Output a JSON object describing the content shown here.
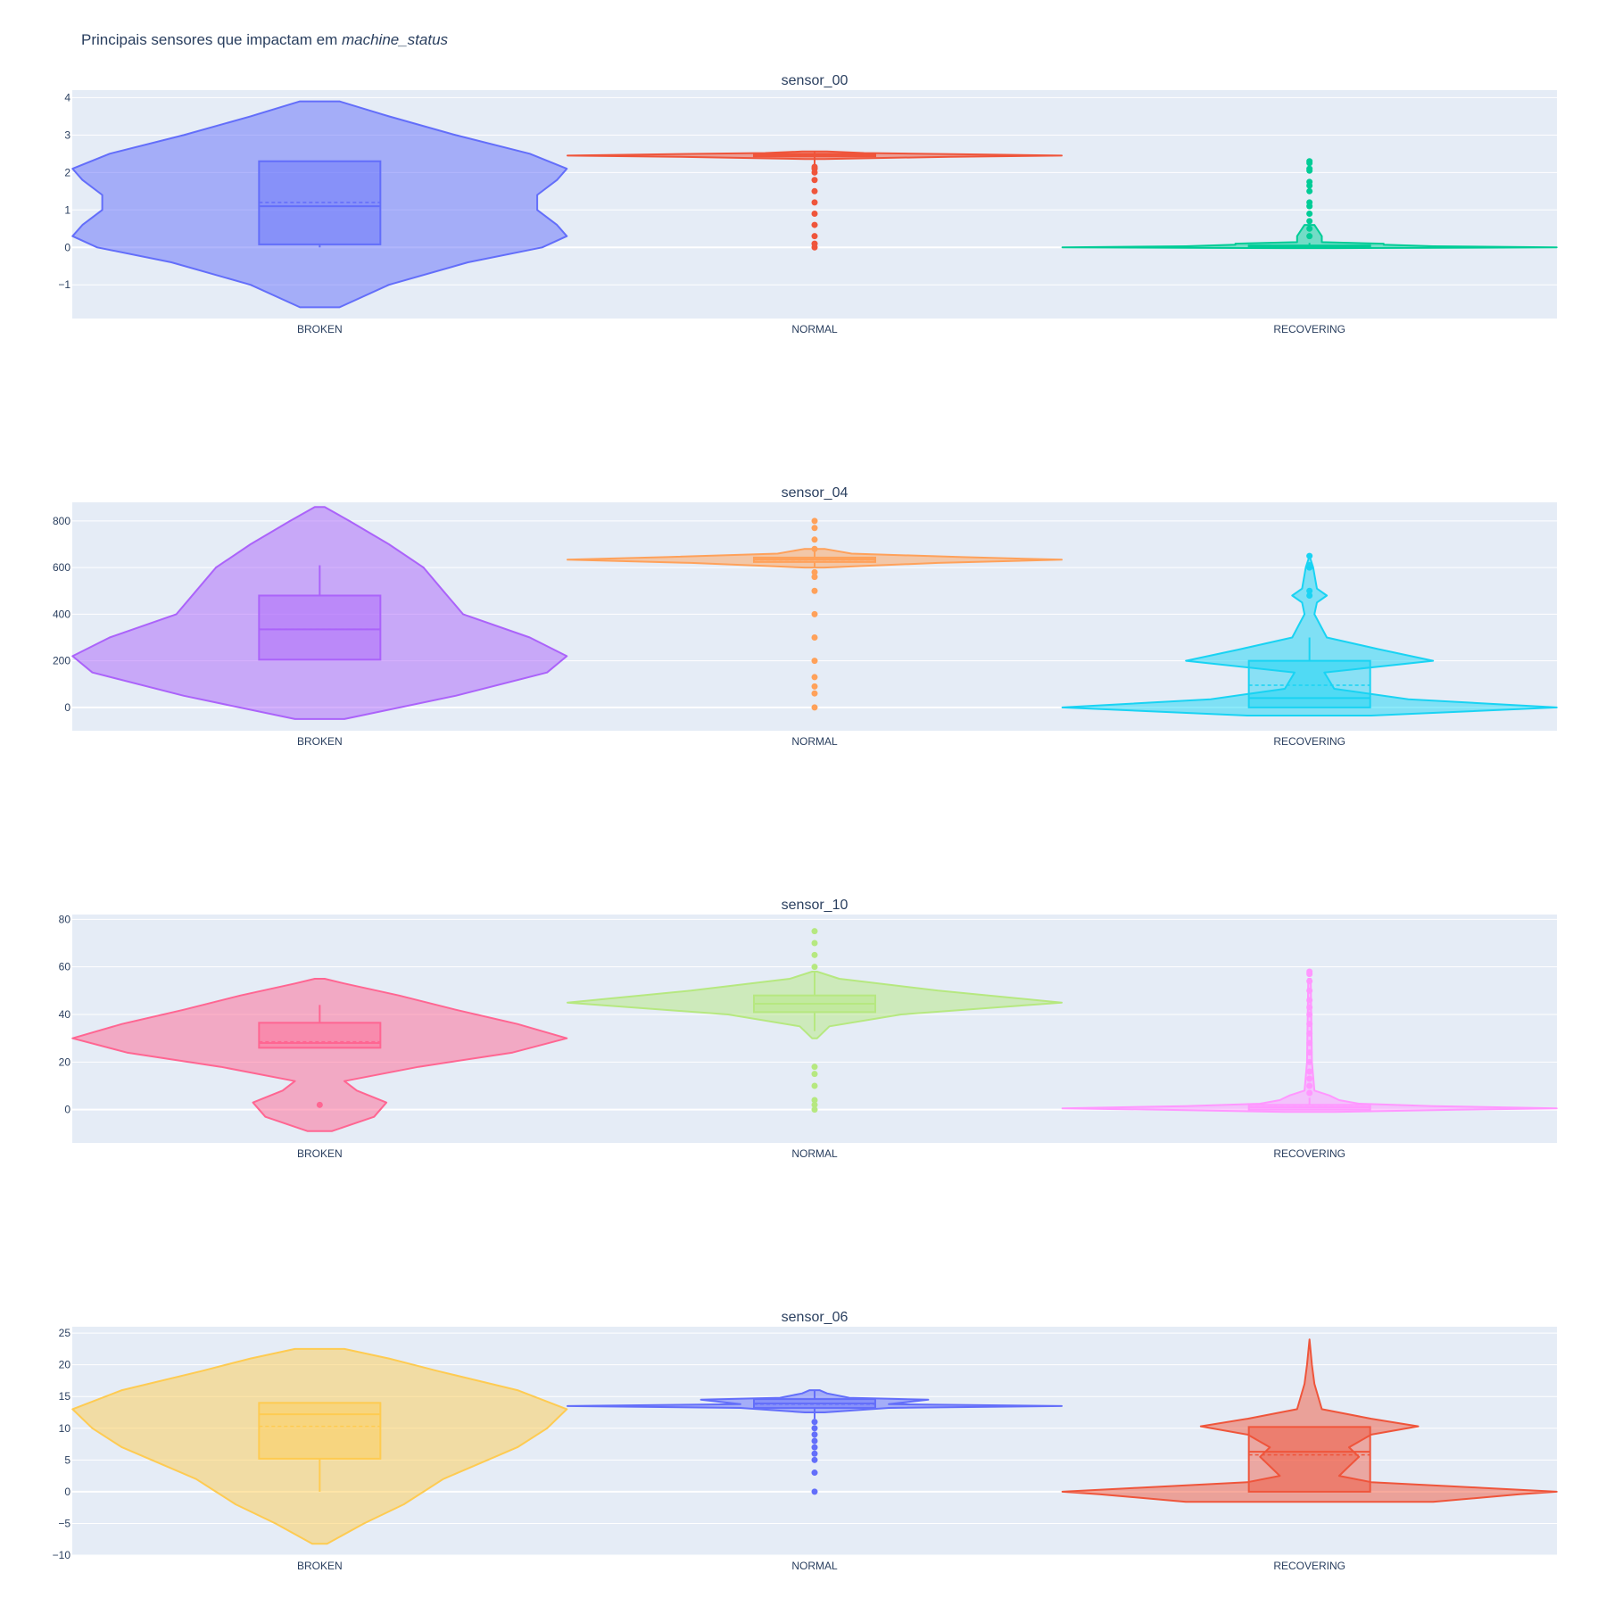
{
  "title": {
    "text": "Principais sensores que impactam em ",
    "emphasis": "machine_status"
  },
  "colors": {
    "plot_bg": "#E5ECF6",
    "grid": "#ffffff",
    "text": "#2a3f5f"
  },
  "chart_data": [
    {
      "type": "violin",
      "title": "sensor_00",
      "categories": [
        "BROKEN",
        "NORMAL",
        "RECOVERING"
      ],
      "ylim": [
        -1.9,
        4.2
      ],
      "yticks": [
        -1,
        0,
        1,
        2,
        3,
        4
      ],
      "ytick_labels": [
        "−1",
        "0",
        "1",
        "2",
        "3",
        "4"
      ],
      "violins": [
        {
          "category": "BROKEN",
          "color": "#636EFA",
          "profile": [
            [
              -1.6,
              0.08
            ],
            [
              -1.0,
              0.28
            ],
            [
              -0.4,
              0.6
            ],
            [
              0.0,
              0.9
            ],
            [
              0.3,
              1.0
            ],
            [
              0.6,
              0.96
            ],
            [
              1.0,
              0.88
            ],
            [
              1.4,
              0.88
            ],
            [
              1.8,
              0.96
            ],
            [
              2.1,
              1.0
            ],
            [
              2.5,
              0.85
            ],
            [
              3.0,
              0.55
            ],
            [
              3.5,
              0.28
            ],
            [
              3.9,
              0.08
            ]
          ],
          "box": {
            "q1": 0.08,
            "median": 1.1,
            "q3": 2.3,
            "mean": 1.2,
            "whisker_low": 0.0,
            "whisker_high": 2.3
          },
          "outliers": []
        },
        {
          "category": "NORMAL",
          "color": "#EF553B",
          "profile": [
            [
              2.36,
              0.04
            ],
            [
              2.42,
              0.55
            ],
            [
              2.45,
              1.0
            ],
            [
              2.48,
              0.7
            ],
            [
              2.52,
              0.2
            ],
            [
              2.56,
              0.05
            ]
          ],
          "box": {
            "q1": 2.43,
            "median": 2.46,
            "q3": 2.5,
            "mean": 2.45,
            "whisker_low": 2.2,
            "whisker_high": 2.56
          },
          "outliers": [
            0.0,
            0.1,
            0.3,
            0.6,
            0.9,
            1.2,
            1.5,
            1.8,
            2.0,
            2.1,
            2.15
          ]
        },
        {
          "category": "RECOVERING",
          "color": "#00CC96",
          "profile": [
            [
              -0.02,
              0.1
            ],
            [
              0.0,
              1.0
            ],
            [
              0.03,
              0.5
            ],
            [
              0.07,
              0.3
            ],
            [
              0.1,
              0.3
            ],
            [
              0.14,
              0.05
            ],
            [
              0.3,
              0.05
            ],
            [
              0.6,
              0.02
            ]
          ],
          "box": {
            "q1": 0.0,
            "median": 0.0,
            "q3": 0.05,
            "mean": 0.02,
            "whisker_low": 0.0,
            "whisker_high": 0.12
          },
          "outliers": [
            0.3,
            0.5,
            0.7,
            0.9,
            1.1,
            1.2,
            1.5,
            1.65,
            1.75,
            2.05,
            2.1,
            2.25,
            2.3
          ]
        }
      ]
    },
    {
      "type": "violin",
      "title": "sensor_04",
      "categories": [
        "BROKEN",
        "NORMAL",
        "RECOVERING"
      ],
      "ylim": [
        -100,
        880
      ],
      "yticks": [
        0,
        200,
        400,
        600,
        800
      ],
      "ytick_labels": [
        "0",
        "200",
        "400",
        "600",
        "800"
      ],
      "violins": [
        {
          "category": "BROKEN",
          "color": "#AB63FA",
          "profile": [
            [
              -50,
              0.1
            ],
            [
              50,
              0.55
            ],
            [
              150,
              0.92
            ],
            [
              220,
              1.0
            ],
            [
              300,
              0.85
            ],
            [
              400,
              0.58
            ],
            [
              500,
              0.5
            ],
            [
              600,
              0.42
            ],
            [
              700,
              0.28
            ],
            [
              800,
              0.12
            ],
            [
              860,
              0.02
            ]
          ],
          "box": {
            "q1": 205,
            "median": 335,
            "q3": 480,
            "mean": 335,
            "whisker_low": 205,
            "whisker_high": 610
          },
          "outliers": []
        },
        {
          "category": "NORMAL",
          "color": "#FFA15A",
          "profile": [
            [
              600,
              0.04
            ],
            [
              620,
              0.5
            ],
            [
              634,
              1.0
            ],
            [
              645,
              0.6
            ],
            [
              660,
              0.15
            ],
            [
              680,
              0.04
            ]
          ],
          "box": {
            "q1": 624,
            "median": 635,
            "q3": 643,
            "mean": 633,
            "whisker_low": 600,
            "whisker_high": 670
          },
          "outliers": [
            0,
            60,
            90,
            130,
            200,
            300,
            400,
            500,
            560,
            580,
            680,
            720,
            770,
            800
          ]
        },
        {
          "category": "RECOVERING",
          "color": "#19D3F3",
          "profile": [
            [
              -35,
              0.25
            ],
            [
              0,
              1.0
            ],
            [
              35,
              0.4
            ],
            [
              80,
              0.1
            ],
            [
              150,
              0.06
            ],
            [
              200,
              0.5
            ],
            [
              250,
              0.28
            ],
            [
              300,
              0.07
            ],
            [
              400,
              0.02
            ],
            [
              450,
              0.03
            ],
            [
              480,
              0.07
            ],
            [
              510,
              0.03
            ],
            [
              600,
              0.015
            ],
            [
              650,
              0.0
            ]
          ],
          "box": {
            "q1": 0,
            "median": 40,
            "q3": 200,
            "mean": 95,
            "whisker_low": 0,
            "whisker_high": 300
          },
          "outliers": [
            480,
            500,
            600,
            610,
            650
          ]
        }
      ]
    },
    {
      "type": "violin",
      "title": "sensor_10",
      "categories": [
        "BROKEN",
        "NORMAL",
        "RECOVERING"
      ],
      "ylim": [
        -14,
        82
      ],
      "yticks": [
        0,
        20,
        40,
        60,
        80
      ],
      "ytick_labels": [
        "0",
        "20",
        "40",
        "60",
        "80"
      ],
      "violins": [
        {
          "category": "BROKEN",
          "color": "#FF6692",
          "profile": [
            [
              -9,
              0.05
            ],
            [
              -3,
              0.22
            ],
            [
              3,
              0.27
            ],
            [
              8,
              0.15
            ],
            [
              12,
              0.1
            ],
            [
              18,
              0.4
            ],
            [
              24,
              0.78
            ],
            [
              30,
              1.0
            ],
            [
              36,
              0.8
            ],
            [
              42,
              0.55
            ],
            [
              48,
              0.32
            ],
            [
              53,
              0.1
            ],
            [
              55,
              0.02
            ]
          ],
          "box": {
            "q1": 26,
            "median": 28,
            "q3": 36.5,
            "mean": 28.5,
            "whisker_low": 26,
            "whisker_high": 44
          },
          "outliers": [
            2
          ]
        },
        {
          "category": "NORMAL",
          "color": "#B6E880",
          "profile": [
            [
              30,
              0.01
            ],
            [
              35,
              0.06
            ],
            [
              40,
              0.35
            ],
            [
              45,
              1.0
            ],
            [
              50,
              0.5
            ],
            [
              55,
              0.1
            ],
            [
              58,
              0.01
            ]
          ],
          "box": {
            "q1": 41,
            "median": 44.5,
            "q3": 48,
            "mean": 44.5,
            "whisker_low": 33,
            "whisker_high": 58
          },
          "outliers": [
            0,
            2,
            4,
            10,
            15,
            18,
            60,
            65,
            70,
            75
          ]
        },
        {
          "category": "RECOVERING",
          "color": "#FF97FF",
          "profile": [
            [
              -1,
              0.1
            ],
            [
              0,
              0.6
            ],
            [
              0.5,
              1.0
            ],
            [
              1.5,
              0.5
            ],
            [
              2.5,
              0.2
            ],
            [
              4,
              0.12
            ],
            [
              6,
              0.08
            ],
            [
              8,
              0.02
            ],
            [
              20,
              0.01
            ],
            [
              55,
              0.005
            ]
          ],
          "box": {
            "q1": 0,
            "median": 1,
            "q3": 2,
            "mean": 1.2,
            "whisker_low": 0,
            "whisker_high": 5
          },
          "outliers": [
            7,
            10,
            13,
            16,
            20,
            24,
            28,
            32,
            36,
            40,
            43,
            46,
            50,
            54,
            57,
            58
          ]
        }
      ]
    },
    {
      "type": "violin",
      "title": "sensor_06",
      "categories": [
        "BROKEN",
        "NORMAL",
        "RECOVERING"
      ],
      "ylim": [
        -10,
        26
      ],
      "yticks": [
        -10,
        -5,
        0,
        5,
        10,
        15,
        20,
        25
      ],
      "ytick_labels": [
        "−10",
        "−5",
        "0",
        "5",
        "10",
        "15",
        "20",
        "25"
      ],
      "violins": [
        {
          "category": "BROKEN",
          "color": "#FECB52",
          "profile": [
            [
              -8.2,
              0.03
            ],
            [
              -5,
              0.18
            ],
            [
              -2,
              0.34
            ],
            [
              0,
              0.42
            ],
            [
              2,
              0.5
            ],
            [
              4,
              0.62
            ],
            [
              7,
              0.8
            ],
            [
              10,
              0.92
            ],
            [
              13,
              1.0
            ],
            [
              16,
              0.8
            ],
            [
              19,
              0.48
            ],
            [
              21,
              0.28
            ],
            [
              22.5,
              0.1
            ]
          ],
          "box": {
            "q1": 5.2,
            "median": 12.2,
            "q3": 14,
            "mean": 10.3,
            "whisker_low": 0,
            "whisker_high": 14
          },
          "outliers": []
        },
        {
          "category": "NORMAL",
          "color": "#636EFA",
          "profile": [
            [
              12.5,
              0.04
            ],
            [
              13.2,
              0.3
            ],
            [
              13.5,
              1.0
            ],
            [
              13.8,
              0.3
            ],
            [
              14.5,
              0.46
            ],
            [
              14.8,
              0.14
            ],
            [
              15.5,
              0.05
            ],
            [
              16,
              0.02
            ]
          ],
          "box": {
            "q1": 13.2,
            "median": 13.9,
            "q3": 14.6,
            "mean": 13.8,
            "whisker_low": 11.5,
            "whisker_high": 16
          },
          "outliers": [
            0,
            3,
            5,
            6,
            7,
            8,
            9,
            10,
            11
          ]
        },
        {
          "category": "RECOVERING",
          "color": "#EF553B",
          "profile": [
            [
              -1.6,
              0.5
            ],
            [
              -0.4,
              0.85
            ],
            [
              0,
              1.0
            ],
            [
              0.6,
              0.7
            ],
            [
              1.5,
              0.25
            ],
            [
              2.5,
              0.12
            ],
            [
              4,
              0.16
            ],
            [
              5.5,
              0.2
            ],
            [
              7,
              0.16
            ],
            [
              9,
              0.25
            ],
            [
              10.3,
              0.44
            ],
            [
              11.5,
              0.25
            ],
            [
              13,
              0.05
            ],
            [
              17,
              0.02
            ],
            [
              20,
              0.01
            ],
            [
              24,
              0.0
            ]
          ],
          "box": {
            "q1": 0,
            "median": 6.3,
            "q3": 10.2,
            "mean": 5.8,
            "whisker_low": 0,
            "whisker_high": 10.2
          },
          "outliers": []
        }
      ]
    }
  ]
}
